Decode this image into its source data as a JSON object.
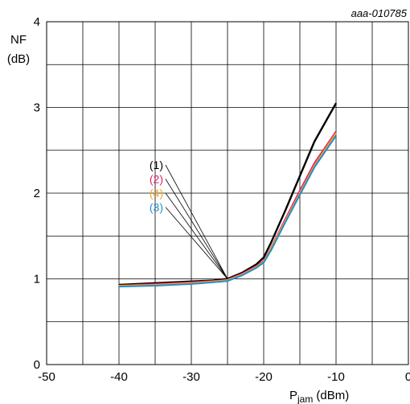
{
  "chart_data": {
    "type": "line",
    "figure_ref": "aaa-010785",
    "xlabel_main": "P",
    "xlabel_sub": "jam",
    "xlabel_unit": "(dBm)",
    "ylabel_line1": "NF",
    "ylabel_line2": "(dB)",
    "xlim": [
      -50,
      0
    ],
    "ylim": [
      0,
      4
    ],
    "x_ticks": [
      -50,
      -40,
      -30,
      -20,
      -10,
      0
    ],
    "y_ticks": [
      0,
      1,
      2,
      3,
      4
    ],
    "grid": true,
    "series": [
      {
        "name": "(1)",
        "color": "#000000",
        "x": [
          -40,
          -35,
          -30,
          -27,
          -25,
          -23,
          -21,
          -20,
          -19,
          -17,
          -15,
          -13,
          -10
        ],
        "y": [
          0.93,
          0.95,
          0.97,
          0.98,
          1.0,
          1.07,
          1.17,
          1.25,
          1.42,
          1.8,
          2.2,
          2.6,
          3.05
        ]
      },
      {
        "name": "(2)",
        "color": "#e0236c",
        "x": [
          -40,
          -35,
          -30,
          -27,
          -25,
          -23,
          -21,
          -20,
          -19,
          -17,
          -15,
          -13,
          -10
        ],
        "y": [
          0.92,
          0.94,
          0.96,
          0.975,
          0.99,
          1.06,
          1.15,
          1.21,
          1.36,
          1.7,
          2.03,
          2.35,
          2.72
        ]
      },
      {
        "name": "(4)",
        "color": "#f5a623",
        "x": [
          -40,
          -35,
          -30,
          -27,
          -25,
          -23,
          -21,
          -20,
          -19,
          -17,
          -15,
          -13,
          -10
        ],
        "y": [
          0.92,
          0.93,
          0.95,
          0.97,
          0.985,
          1.05,
          1.14,
          1.2,
          1.35,
          1.68,
          2.0,
          2.32,
          2.7
        ]
      },
      {
        "name": "(3)",
        "color": "#1f8fce",
        "x": [
          -40,
          -35,
          -30,
          -27,
          -25,
          -23,
          -21,
          -20,
          -19,
          -17,
          -15,
          -13,
          -10
        ],
        "y": [
          0.91,
          0.92,
          0.94,
          0.96,
          0.975,
          1.04,
          1.13,
          1.19,
          1.33,
          1.66,
          1.98,
          2.3,
          2.67
        ]
      }
    ],
    "annotation_target": {
      "x": -25,
      "y": 1.0
    }
  }
}
